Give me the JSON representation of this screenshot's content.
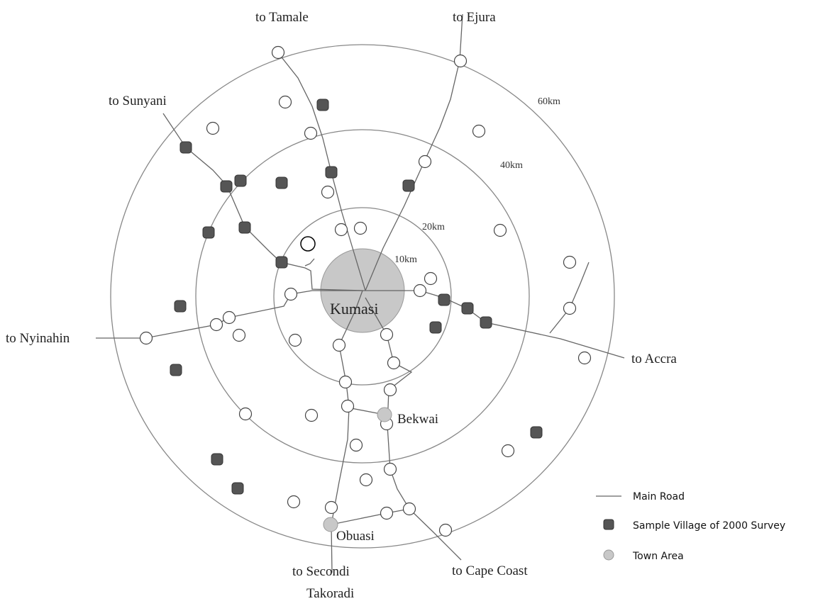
{
  "roads": {
    "tamale": "to Tamale",
    "ejura": "to Ejura",
    "sunyani": "to Sunyani",
    "nyinahin": "to Nyinahin",
    "accra": "to Accra",
    "secondi": [
      "to Secondi",
      "Takoradi"
    ],
    "cape_coast": "to Cape Coast"
  },
  "rings": [
    "10km",
    "20km",
    "40km",
    "60km"
  ],
  "towns": {
    "center": "Kumasi",
    "bekwai": "Bekwai",
    "obuasi": "Obuasi"
  },
  "legend": [
    "Main Road",
    "Sample Village of 2000 Survey",
    "Town Area"
  ]
}
